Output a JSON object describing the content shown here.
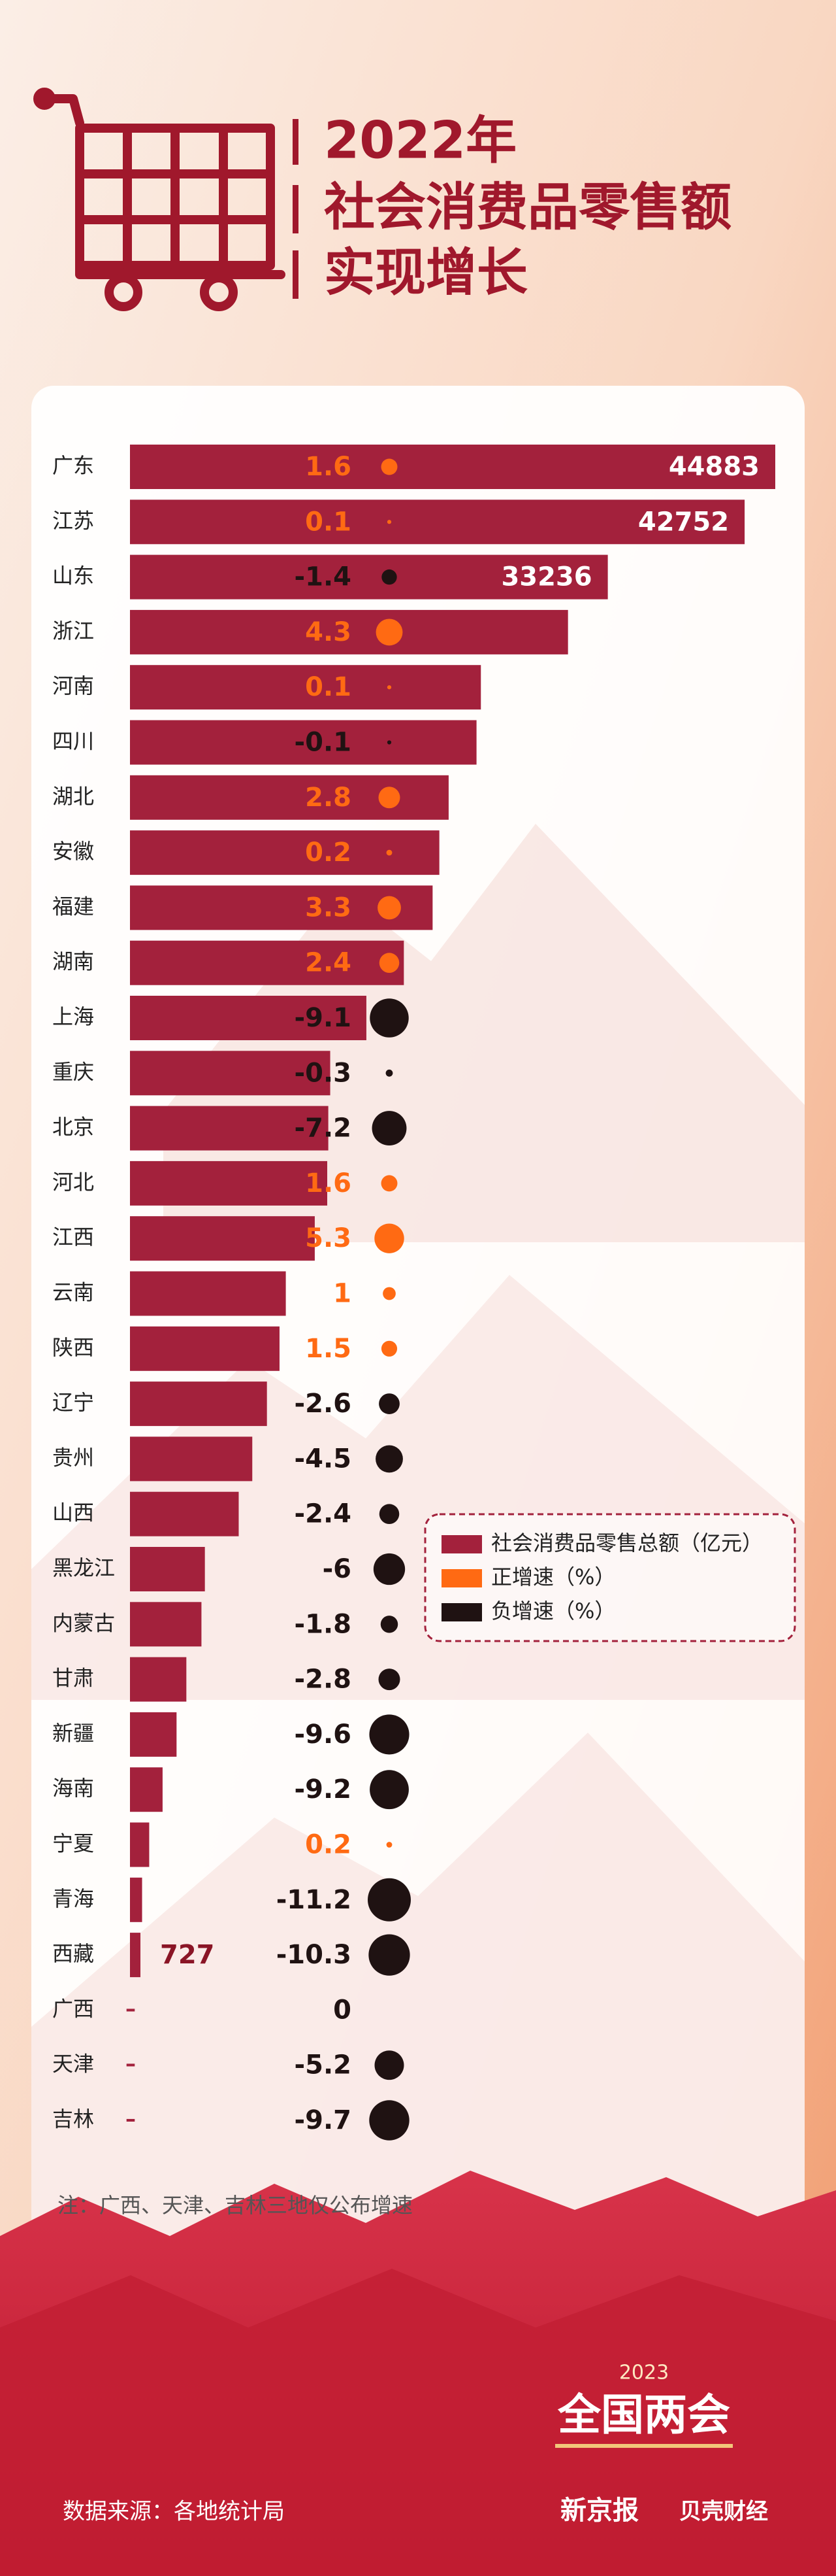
{
  "chart_data": {
    "type": "bar",
    "title": [
      "2022年",
      "社会消费品零售额",
      "实现增长"
    ],
    "categories": [
      "广东",
      "江苏",
      "山东",
      "浙江",
      "河南",
      "四川",
      "湖北",
      "安徽",
      "福建",
      "湖南",
      "上海",
      "重庆",
      "北京",
      "河北",
      "江西",
      "云南",
      "陕西",
      "辽宁",
      "贵州",
      "山西",
      "黑龙江",
      "内蒙古",
      "甘肃",
      "新疆",
      "海南",
      "宁夏",
      "青海",
      "西藏",
      "广西",
      "天津",
      "吉林"
    ],
    "series": [
      {
        "name": "社会消费品零售总额（亿元）",
        "color": "#a3213c",
        "values": [
          44883,
          42752,
          33236,
          30467,
          24407,
          24104,
          22165,
          21518,
          21050,
          19050,
          16442,
          13926,
          13794,
          13720,
          12853,
          10839,
          10402,
          9526,
          8507,
          7563,
          5210,
          4971,
          3922,
          3240,
          2268,
          1338,
          842,
          727,
          null,
          null,
          null
        ],
        "value_labels": [
          "44883",
          "42752",
          "33236",
          null,
          null,
          null,
          null,
          null,
          null,
          null,
          null,
          null,
          null,
          null,
          null,
          null,
          null,
          null,
          null,
          null,
          null,
          null,
          null,
          null,
          null,
          null,
          null,
          "727",
          null,
          null,
          null
        ]
      },
      {
        "name": "正增速（%）",
        "color": "#ff6a13"
      },
      {
        "name": "负增速（%）",
        "color": "#1f1212"
      }
    ],
    "growth_values": [
      1.6,
      0.1,
      -1.4,
      4.3,
      0.1,
      -0.1,
      2.8,
      0.2,
      3.3,
      2.4,
      -9.1,
      -0.3,
      -7.2,
      1.6,
      5.3,
      1,
      1.5,
      -2.6,
      -4.5,
      -2.4,
      -6,
      -1.8,
      -2.8,
      -9.6,
      -9.2,
      0.2,
      -11.2,
      -10.3,
      0,
      -5.2,
      -9.7
    ],
    "missing_label": "–",
    "note": "注：广西、天津、吉林三地仅公布增速",
    "source": "数据来源：各地统计局",
    "event": {
      "year": "2023",
      "name": "全国两会"
    },
    "brands": [
      "新京报",
      "贝壳财经"
    ]
  }
}
